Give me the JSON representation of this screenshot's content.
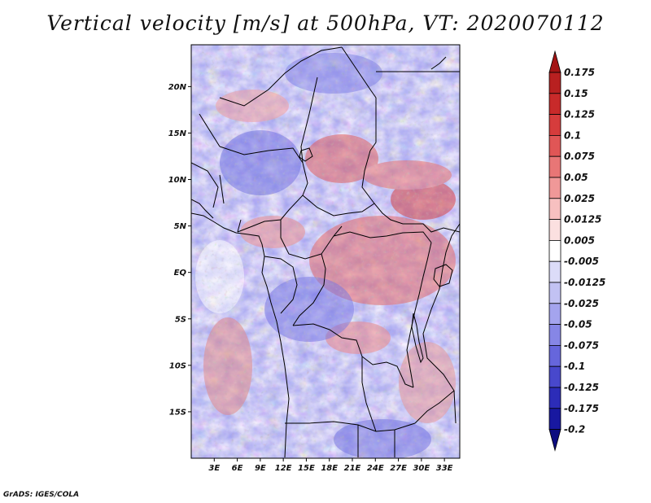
{
  "title": "Vertical velocity [m/s] at 500hPa, VT: 2020070112",
  "credit": "GrADS: IGES/COLA",
  "map": {
    "lon_range": [
      0,
      35
    ],
    "lat_range": [
      -20,
      24.5
    ],
    "lat_ticks": [
      {
        "value": 20,
        "label": "20N"
      },
      {
        "value": 15,
        "label": "15N"
      },
      {
        "value": 10,
        "label": "10N"
      },
      {
        "value": 5,
        "label": "5N"
      },
      {
        "value": 0,
        "label": "EQ"
      },
      {
        "value": -5,
        "label": "5S"
      },
      {
        "value": -10,
        "label": "10S"
      },
      {
        "value": -15,
        "label": "15S"
      }
    ],
    "lon_ticks": [
      {
        "value": 3,
        "label": "3E"
      },
      {
        "value": 6,
        "label": "6E"
      },
      {
        "value": 9,
        "label": "9E"
      },
      {
        "value": 12,
        "label": "12E"
      },
      {
        "value": 15,
        "label": "15E"
      },
      {
        "value": 18,
        "label": "18E"
      },
      {
        "value": 21,
        "label": "21E"
      },
      {
        "value": 24,
        "label": "24E"
      },
      {
        "value": 27,
        "label": "27E"
      },
      {
        "value": 30,
        "label": "30E"
      },
      {
        "value": 33,
        "label": "33E"
      }
    ]
  },
  "colorbar": {
    "labels": [
      "0.175",
      "0.15",
      "0.125",
      "0.1",
      "0.075",
      "0.05",
      "0.025",
      "0.0125",
      "0.005",
      "-0.005",
      "-0.0125",
      "-0.025",
      "-0.05",
      "-0.075",
      "-0.1",
      "-0.125",
      "-0.175",
      "-0.2"
    ],
    "colors": [
      "#a31414",
      "#b82020",
      "#c82a2a",
      "#d63c3c",
      "#e05656",
      "#e87676",
      "#f09898",
      "#f7c0c0",
      "#fbe0e0",
      "#ffffff",
      "#dcdcf8",
      "#c2c2f3",
      "#a4a4ee",
      "#8686e6",
      "#6666dc",
      "#4848cc",
      "#2c2cb8",
      "#1818a0",
      "#0c0c80"
    ]
  }
}
